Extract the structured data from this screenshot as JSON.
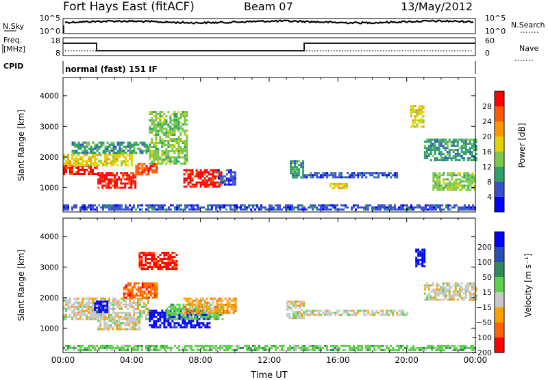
{
  "header": {
    "title": "Fort Hays East (fitACF)",
    "beam": "Beam 07",
    "date": "13/May/2012"
  },
  "top_panels": {
    "nsky_label": "N.Sky",
    "nsky_ticks": [
      "10^5",
      "10^0"
    ],
    "nsearch_label": "N.Search",
    "freq_label_1": "Freq.",
    "freq_label_2": "[MHz]",
    "freq_ticks": [
      "18",
      "8"
    ],
    "nave_label": "Nave",
    "nave_ticks": [
      "60",
      "0"
    ],
    "cpid_label": "CPID",
    "cpid_text": "normal (fast) 151 IF"
  },
  "chart_data": [
    {
      "type": "heatmap",
      "name": "power",
      "ylabel": "Slant Range [km]",
      "yticks": [
        1000,
        2000,
        3000,
        4000
      ],
      "ylim": [
        200,
        4600
      ],
      "xlim": [
        0,
        24
      ],
      "colorbar": {
        "label": "Power [dB]",
        "ticks": [
          "28",
          "24",
          "20",
          "16",
          "12",
          "8",
          "4"
        ],
        "colors": [
          "#ff0000",
          "#ff5a00",
          "#ff9600",
          "#e6d200",
          "#7cc84a",
          "#2ea06a",
          "#3a4fd0",
          "#0000ff"
        ]
      },
      "regions": [
        {
          "t0": 0.0,
          "t1": 2.0,
          "r0": 1450,
          "r1": 1750,
          "c": 0
        },
        {
          "t0": 2.0,
          "t1": 4.2,
          "r0": 1000,
          "r1": 1500,
          "c": 0
        },
        {
          "t0": 4.2,
          "t1": 5.5,
          "r0": 1400,
          "r1": 1800,
          "c": 1
        },
        {
          "t0": 7.0,
          "t1": 9.2,
          "r0": 1000,
          "r1": 1600,
          "c": 0
        },
        {
          "t0": 0.0,
          "t1": 4.0,
          "r0": 1750,
          "r1": 2100,
          "c": 3
        },
        {
          "t0": 0.5,
          "t1": 5.0,
          "r0": 2100,
          "r1": 2500,
          "c": 5
        },
        {
          "t0": 5.0,
          "t1": 7.2,
          "r0": 1800,
          "r1": 3500,
          "c": 4
        },
        {
          "t0": 9.0,
          "t1": 10.0,
          "r0": 1100,
          "r1": 1600,
          "c": 6
        },
        {
          "t0": 13.2,
          "t1": 14.0,
          "r0": 1300,
          "r1": 1900,
          "c": 5
        },
        {
          "t0": 14.0,
          "t1": 19.5,
          "r0": 1350,
          "r1": 1500,
          "c": 6
        },
        {
          "t0": 15.5,
          "t1": 16.5,
          "r0": 950,
          "r1": 1150,
          "c": 3
        },
        {
          "t0": 20.2,
          "t1": 21.0,
          "r0": 3000,
          "r1": 3700,
          "c": 3
        },
        {
          "t0": 21.0,
          "t1": 24.0,
          "r0": 1900,
          "r1": 2600,
          "c": 5
        },
        {
          "t0": 21.5,
          "t1": 24.0,
          "r0": 900,
          "r1": 1500,
          "c": 4
        },
        {
          "t0": 0.0,
          "t1": 24.0,
          "r0": 250,
          "r1": 450,
          "c": 6
        }
      ]
    },
    {
      "type": "heatmap",
      "name": "velocity",
      "ylabel": "Slant Range [km]",
      "xlabel": "Time UT",
      "xticks": [
        "00:00",
        "04:00",
        "08:00",
        "12:00",
        "16:00",
        "20:00",
        "00:00"
      ],
      "yticks": [
        1000,
        2000,
        3000,
        4000
      ],
      "ylim": [
        200,
        4600
      ],
      "xlim": [
        0,
        24
      ],
      "colorbar": {
        "label": "Velocity [m s⁻¹]",
        "ticks": [
          "200",
          "100",
          "50",
          "15",
          "−15",
          "−50",
          "−100",
          "−200"
        ],
        "colors": [
          "#0000ff",
          "#2a4fb8",
          "#2e8b57",
          "#5bd24a",
          "#c8c8c8",
          "#ffa000",
          "#ff6400",
          "#ff0000"
        ]
      },
      "regions": [
        {
          "t0": 0.0,
          "t1": 5.0,
          "r0": 1300,
          "r1": 2000,
          "c": 4
        },
        {
          "t0": 2.0,
          "t1": 4.5,
          "r0": 950,
          "r1": 1400,
          "c": 4
        },
        {
          "t0": 1.8,
          "t1": 2.6,
          "r0": 1500,
          "r1": 1900,
          "c": 0
        },
        {
          "t0": 3.5,
          "t1": 5.5,
          "r0": 2000,
          "r1": 2500,
          "c": 6
        },
        {
          "t0": 4.4,
          "t1": 6.6,
          "r0": 2900,
          "r1": 3500,
          "c": 7
        },
        {
          "t0": 5.0,
          "t1": 8.5,
          "r0": 1000,
          "r1": 1600,
          "c": 0
        },
        {
          "t0": 6.0,
          "t1": 9.3,
          "r0": 1300,
          "r1": 1800,
          "c": 3
        },
        {
          "t0": 7.0,
          "t1": 10.0,
          "r0": 1500,
          "r1": 2000,
          "c": 5
        },
        {
          "t0": 14.0,
          "t1": 20.0,
          "r0": 1400,
          "r1": 1600,
          "c": 4
        },
        {
          "t0": 13.0,
          "t1": 14.0,
          "r0": 1300,
          "r1": 1900,
          "c": 4
        },
        {
          "t0": 20.5,
          "t1": 21.0,
          "r0": 3000,
          "r1": 3600,
          "c": 0
        },
        {
          "t0": 21.0,
          "t1": 24.0,
          "r0": 1900,
          "r1": 2500,
          "c": 4
        },
        {
          "t0": 0.0,
          "t1": 24.0,
          "r0": 250,
          "r1": 450,
          "c": 3
        }
      ]
    }
  ]
}
